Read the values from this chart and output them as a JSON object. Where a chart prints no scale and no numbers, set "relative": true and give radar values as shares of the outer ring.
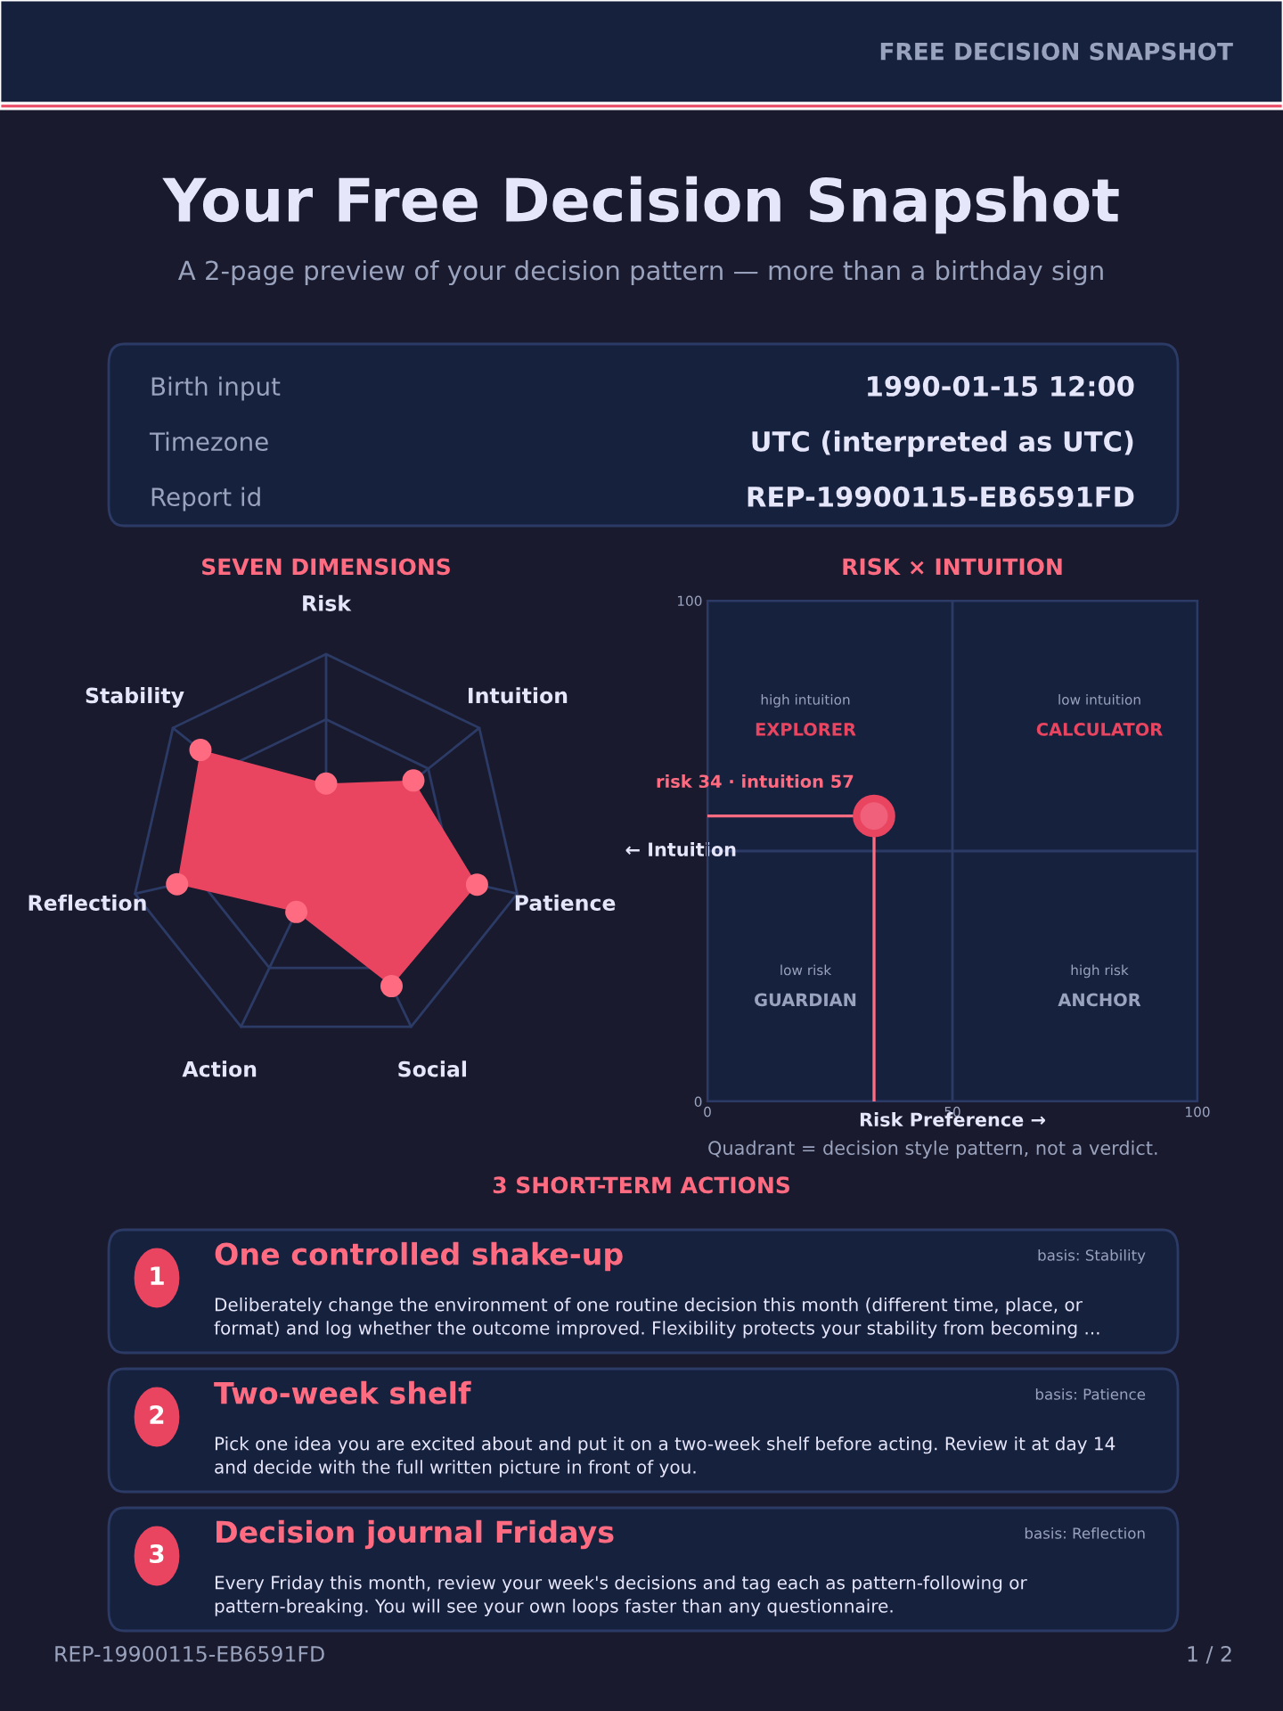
{
  "chart_data": [
    {
      "type": "other",
      "title": "Your Free Decision Snapshot",
      "subtitle": "A 2-page preview of your decision pattern — more than a birthday sign",
      "annotations": [
        "FREE DECISION SNAPSHOT",
        "Birth input",
        "1990-01-15 12:00",
        "Timezone",
        "UTC (interpreted as UTC)",
        "Report id",
        "REP-19900115-EB6591FD"
      ]
    },
    {
      "type": "radar",
      "title": "SEVEN DIMENSIONS",
      "categories": [
        "Risk",
        "Intuition",
        "Patience",
        "Social",
        "Action",
        "Reflection",
        "Stability"
      ],
      "relative": true,
      "grid": true,
      "marker": "circle",
      "series": [
        {
          "color": "#e94560",
          "values": [
            0.34,
            0.57,
            0.79,
            0.77,
            0.35,
            0.78,
            0.82
          ]
        }
      ]
    },
    {
      "type": "scatter",
      "title": "RISK × INTUITION",
      "xlabel": "Risk Preference →",
      "ylabel": "← Intuition",
      "x": [
        34
      ],
      "values": [
        57
      ],
      "color": "#f0607a",
      "xlim": [
        0,
        100
      ],
      "ylim": [
        0,
        100
      ],
      "xticks": [
        0,
        50,
        100
      ],
      "yticks": [
        0,
        {
          "value": 50,
          "label": null
        },
        100
      ],
      "grid": true,
      "marker": "circle",
      "annotations": [
        {
          "text": "risk 34 · intuition 57",
          "x": 34,
          "y": 57
        },
        "high intuition",
        "EXPLORER",
        "low intuition",
        "CALCULATOR",
        "low risk",
        "GUARDIAN",
        "high risk",
        "ANCHOR",
        "Quadrant = decision style pattern, not a verdict."
      ]
    },
    {
      "type": "other",
      "title": "3 SHORT-TERM ACTIONS",
      "annotations": [
        "1",
        "One controlled shake-up",
        "basis: Stability",
        "Deliberately change the environment of one routine decision this month (different time, place, or format) and log whether the outcome improved. Flexibility protects your stability from becoming ...",
        "2",
        "Two-week shelf",
        "basis: Patience",
        "Pick one idea you are excited about and put it on a two-week shelf before acting. Review it at day 14 and decide with the full written picture in front of you.",
        "3",
        "Decision journal Fridays",
        "basis: Reflection",
        "Every Friday this month, review your week's decisions and tag each as pattern-following or pattern-breaking. You will see your own loops faster than any questionnaire.",
        "REP-19900115-EB6591FD",
        "1 / 2"
      ]
    }
  ]
}
